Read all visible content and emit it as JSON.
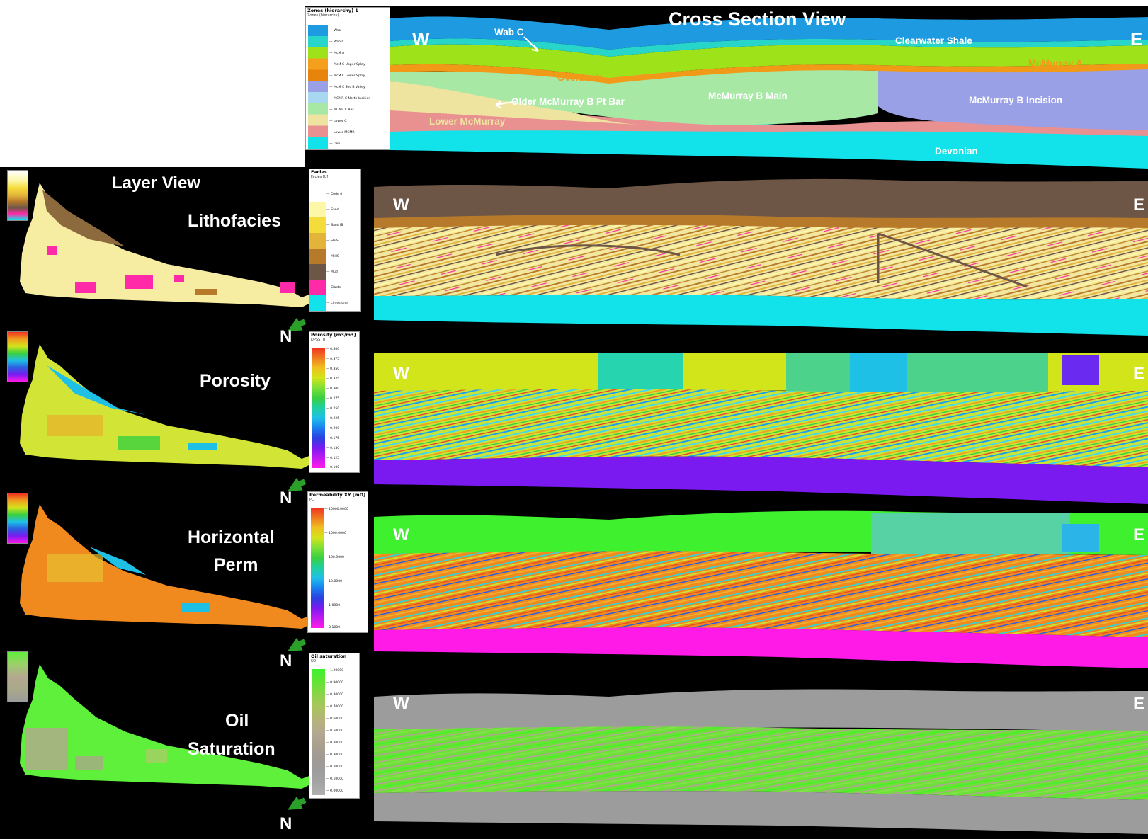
{
  "titles": {
    "cross_section": "Cross Section View",
    "layer_view": "Layer View"
  },
  "panel_labels": {
    "lithofacies": "Lithofacies",
    "porosity": "Porosity",
    "horizontal_perm_1": "Horizontal",
    "horizontal_perm_2": "Perm",
    "oil_sat_1": "Oil",
    "oil_sat_2": "Saturation"
  },
  "directions": {
    "west": "W",
    "east": "E",
    "north": "N"
  },
  "zone_labels": {
    "wab_c": "Wab C",
    "clearwater": "Clearwater Shale",
    "mcmurray_a": "McMurray A",
    "overbank": "Overbank",
    "older_b_pt_bar": "Older McMurray B Pt Bar",
    "b_main": "McMurray B Main",
    "b_incision": "McMurray B Incision",
    "lower_mcmurray": "Lower McMurray",
    "devonian": "Devonian"
  },
  "legends": {
    "zones": {
      "title": "Zones (hierarchy) 1",
      "subtitle": "Zones (hierarchy)",
      "items": [
        {
          "label": "Wab",
          "color": "#1e9be0"
        },
        {
          "label": "Wab C",
          "color": "#27d6c8"
        },
        {
          "label": "McM A",
          "color": "#9ee21a"
        },
        {
          "label": "McM C Upper Splay",
          "color": "#f5a01c"
        },
        {
          "label": "McM C Lower Splay",
          "color": "#e8840c"
        },
        {
          "label": "McM C Sec B Valley",
          "color": "#9aa0e6"
        },
        {
          "label": "MCMR C North Incision",
          "color": "#a8d8f0"
        },
        {
          "label": "MCMR C Res",
          "color": "#a6e8a4"
        },
        {
          "label": "Lower C",
          "color": "#eee4a0"
        },
        {
          "label": "Lower MCMR",
          "color": "#e99090"
        },
        {
          "label": "Dev",
          "color": "#12e2ea"
        }
      ]
    },
    "facies": {
      "title": "Facies",
      "subtitle": "Facies [U]",
      "items": [
        {
          "label": "Code 0",
          "color": "#ffffff"
        },
        {
          "label": "Sand",
          "color": "#fdf7a8"
        },
        {
          "label": "Sand IB",
          "color": "#f4dc3a"
        },
        {
          "label": "SIHS",
          "color": "#e2b43a"
        },
        {
          "label": "MIHS",
          "color": "#b77a2a"
        },
        {
          "label": "Mud",
          "color": "#6e5646"
        },
        {
          "label": "Clasts",
          "color": "#ff2aa8"
        },
        {
          "label": "Limestone",
          "color": "#12e2ea"
        }
      ]
    },
    "porosity": {
      "title": "Porosity [m3/m3]",
      "subtitle": "DPSS [U]",
      "ticks": [
        "0.400",
        "0.375",
        "0.350",
        "0.325",
        "0.300",
        "0.275",
        "0.250",
        "0.225",
        "0.200",
        "0.175",
        "0.150",
        "0.125",
        "0.100"
      ]
    },
    "permeability": {
      "title": "Permeability XY [mD]",
      "subtitle": "PL",
      "ticks": [
        "10000.0000",
        "1000.0000",
        "100.0000",
        "10.0000",
        "1.0000",
        "0.1000"
      ]
    },
    "oil_saturation": {
      "title": "Oil saturation",
      "subtitle": "SO",
      "ticks": [
        "1.00000",
        "0.90000",
        "0.80000",
        "0.70000",
        "0.60000",
        "0.50000",
        "0.40000",
        "0.30000",
        "0.20000",
        "0.10000",
        "0.00000"
      ]
    }
  },
  "colors": {
    "background": "#000000",
    "wab": "#1e9be0",
    "devonian": "#12e2ea",
    "porosity_base": "#7a1af0",
    "perm_base": "#ff1ae8",
    "perm_top": "#3ef02e",
    "oil_sat_gray": "#9c9c9c"
  }
}
